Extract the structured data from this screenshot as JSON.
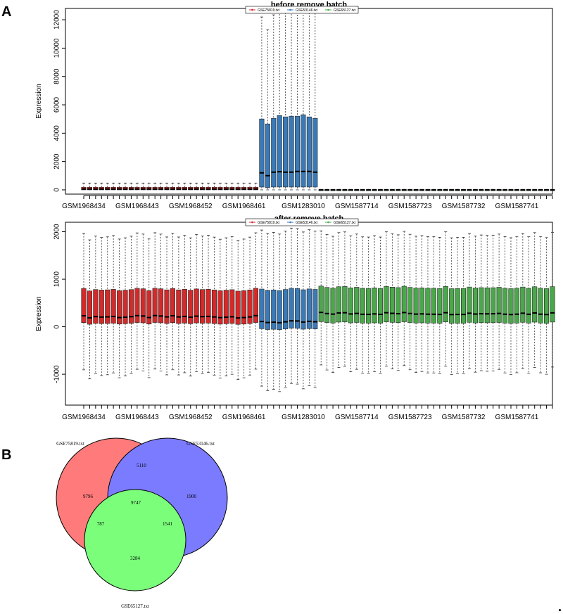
{
  "panels": {
    "a": "A",
    "b": "B"
  },
  "colors": {
    "red": "#d42a2a",
    "blue": "#3a7ab8",
    "green": "#4aa84a"
  },
  "chart_data": [
    {
      "type": "boxplot",
      "title": "before remove batch",
      "ylabel": "Expression",
      "ylim": [
        -300,
        12800
      ],
      "yticks": [
        0,
        2000,
        4000,
        6000,
        8000,
        10000,
        12000
      ],
      "x_tick_labels": [
        "GSM1968434",
        "GSM1968443",
        "GSM1968452",
        "GSM1968461",
        "GSM1283010",
        "GSM1587714",
        "GSM1587723",
        "GSM1587732",
        "GSM1587741"
      ],
      "x_tick_label_positions": [
        1,
        10,
        19,
        28,
        38,
        47,
        56,
        65,
        74
      ],
      "legend": {
        "position": "top-center",
        "entries": [
          "GSE75819.txt",
          "GSE53146.txt",
          "GSE65127.txt"
        ]
      },
      "series": [
        {
          "name": "GSE75819.txt",
          "count": 30,
          "box": [
            0,
            180
          ],
          "median": 60,
          "whisker": [
            0,
            480
          ]
        },
        {
          "name": "GSE53146.txt",
          "count": 10,
          "q1": [
            200,
            150,
            200,
            200,
            200,
            200,
            200,
            200,
            200,
            200
          ],
          "q3": [
            5000,
            4650,
            5050,
            5250,
            5150,
            5200,
            5200,
            5300,
            5150,
            5050
          ],
          "median": [
            1200,
            1000,
            1250,
            1280,
            1250,
            1250,
            1300,
            1300,
            1300,
            1250
          ],
          "upper": [
            12200,
            11300,
            12350,
            12600,
            12500,
            12600,
            12750,
            12750,
            12700,
            12650
          ]
        },
        {
          "name": "GSE65127.txt",
          "count": 40,
          "box": [
            0,
            15
          ],
          "median": 5,
          "whisker": [
            0,
            30
          ]
        }
      ]
    },
    {
      "type": "boxplot",
      "title": "after remove batch",
      "ylabel": "Expression",
      "ylim": [
        -1650,
        2200
      ],
      "yticks": [
        -1000,
        0,
        1000,
        2000
      ],
      "x_tick_labels": [
        "GSM1968434",
        "GSM1968443",
        "GSM1968452",
        "GSM1968461",
        "GSM1283010",
        "GSM1587714",
        "GSM1587723",
        "GSM1587732",
        "GSM1587741"
      ],
      "x_tick_label_positions": [
        1,
        10,
        19,
        28,
        38,
        47,
        56,
        65,
        74
      ],
      "legend": {
        "position": "top-center",
        "entries": [
          "GSE75819.txt",
          "GSE53146.txt",
          "GSE65127.txt"
        ]
      },
      "series": [
        {
          "name": "GSE75819.txt",
          "count": 30,
          "q1": 70,
          "q3": 780,
          "median": 210,
          "lower": -1000,
          "upper": 1900
        },
        {
          "name": "GSE53146.txt",
          "count": 10,
          "q1": -50,
          "q3": 780,
          "median": 100,
          "lower": -1300,
          "upper": 2000
        },
        {
          "name": "GSE65127.txt",
          "count": 40,
          "q1": 90,
          "q3": 830,
          "median": 280,
          "lower": -900,
          "upper": 1950
        }
      ]
    }
  ],
  "venn": {
    "labels": {
      "a": "GSE75819.txt",
      "b": "GSE53146.txt",
      "c": "GSE65127.txt"
    },
    "colors": {
      "a": "#ff7b7b",
      "b": "#7b7bff",
      "c": "#7bff7b"
    },
    "regions": {
      "a_only": "9796",
      "b_only": "1900",
      "c_only": "3284",
      "ab": "5110",
      "ac": "787",
      "bc": "1541",
      "abc": "9747"
    }
  }
}
